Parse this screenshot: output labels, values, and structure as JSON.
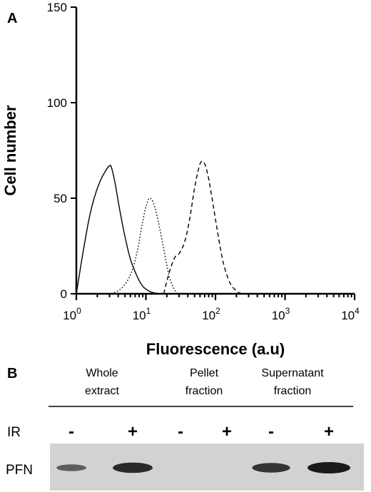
{
  "panel_a": {
    "label": "A"
  },
  "panel_b": {
    "label": "B",
    "fractions": [
      {
        "line1": "Whole",
        "line2": "extract"
      },
      {
        "line1": "Pellet",
        "line2": "fraction"
      },
      {
        "line1": "Supernatant",
        "line2": "fraction"
      }
    ],
    "ir_row_label": "IR",
    "ir_signs": [
      "-",
      "+",
      "-",
      "+",
      "-",
      "+"
    ],
    "blot_label": "PFN",
    "band_intensity": [
      0.35,
      0.85,
      0,
      0,
      0.75,
      1.0
    ]
  },
  "chart_data": {
    "type": "line",
    "title": "",
    "xlabel": "Fluorescence (a.u)",
    "ylabel": "Cell number",
    "x_scale": "log",
    "xlim": [
      1,
      10000
    ],
    "ylim": [
      0,
      150
    ],
    "x_ticks": [
      {
        "base": "10",
        "exp": "0"
      },
      {
        "base": "10",
        "exp": "1"
      },
      {
        "base": "10",
        "exp": "2"
      },
      {
        "base": "10",
        "exp": "3"
      },
      {
        "base": "10",
        "exp": "4"
      }
    ],
    "y_ticks": [
      0,
      50,
      100,
      150
    ],
    "grid": false,
    "legend": "none",
    "series": [
      {
        "line_style": "solid",
        "x": [
          1,
          1.2,
          1.5,
          1.8,
          2.2,
          2.6,
          3.0,
          3.2,
          3.6,
          4.2,
          5.0,
          6.0,
          7.5,
          9.0,
          11,
          13,
          16
        ],
        "y": [
          0,
          18,
          38,
          50,
          59,
          64,
          67,
          66,
          58,
          44,
          30,
          18,
          9,
          4,
          1.5,
          0.5,
          0
        ]
      },
      {
        "line_style": "dotted",
        "x": [
          3.2,
          4.5,
          6.0,
          7.5,
          8.5,
          9.5,
          10.5,
          11.5,
          13,
          15,
          17.5,
          20,
          22,
          25,
          28
        ],
        "y": [
          0,
          3,
          10,
          22,
          33,
          42,
          48,
          50,
          47,
          38,
          26,
          15,
          8,
          3,
          0
        ]
      },
      {
        "line_style": "dashed",
        "x": [
          18,
          22,
          26,
          30,
          36,
          42,
          50,
          56,
          62,
          70,
          80,
          95,
          110,
          130,
          160,
          200,
          240
        ],
        "y": [
          0,
          12,
          19,
          21,
          27,
          38,
          55,
          64,
          69,
          68,
          60,
          44,
          30,
          16,
          6,
          1.5,
          0
        ]
      }
    ]
  }
}
